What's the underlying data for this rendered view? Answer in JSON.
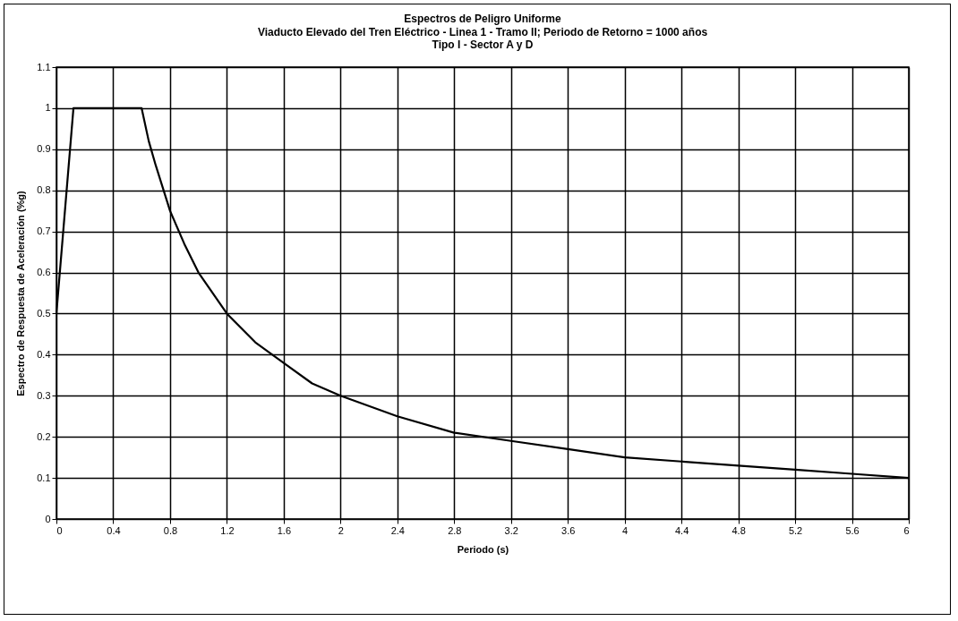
{
  "chart_data": {
    "type": "line",
    "title": "Espectros de Peligro Uniforme",
    "subtitle": "Viaducto Elevado del Tren Eléctrico - Linea 1 - Tramo II; Periodo de Retorno = 1000 años\nTipo I - Sector A y D",
    "xlabel": "Periodo (s)",
    "ylabel": "Espectro de Respuesta de Aceleración (%g)",
    "x": [
      0,
      0.12,
      0.6,
      0.65,
      0.7,
      0.8,
      0.9,
      1.0,
      1.2,
      1.4,
      1.6,
      1.8,
      2.0,
      2.4,
      2.8,
      3.2,
      3.6,
      4.0,
      4.4,
      4.8,
      5.2,
      5.6,
      6.0
    ],
    "series": [
      {
        "color": "#000000",
        "values": [
          0.5,
          1,
          1,
          0.92,
          0.86,
          0.75,
          0.67,
          0.6,
          0.5,
          0.43,
          0.38,
          0.33,
          0.3,
          0.25,
          0.21,
          0.19,
          0.17,
          0.15,
          0.14,
          0.13,
          0.12,
          0.11,
          0.1
        ]
      }
    ],
    "xlim": [
      0,
      6
    ],
    "xticks": [
      0,
      0.4,
      0.8,
      1.2,
      1.6,
      2,
      2.4,
      2.8,
      3.2,
      3.6,
      4,
      4.4,
      4.8,
      5.2,
      5.6,
      6
    ],
    "ylim": [
      0,
      1.1
    ],
    "yticks": [
      0,
      0.1,
      0.2,
      0.3,
      0.4,
      0.5,
      0.6,
      0.7,
      0.8,
      0.9,
      1,
      1.1
    ],
    "grid": true,
    "marker": "none",
    "line_style": "solid"
  }
}
